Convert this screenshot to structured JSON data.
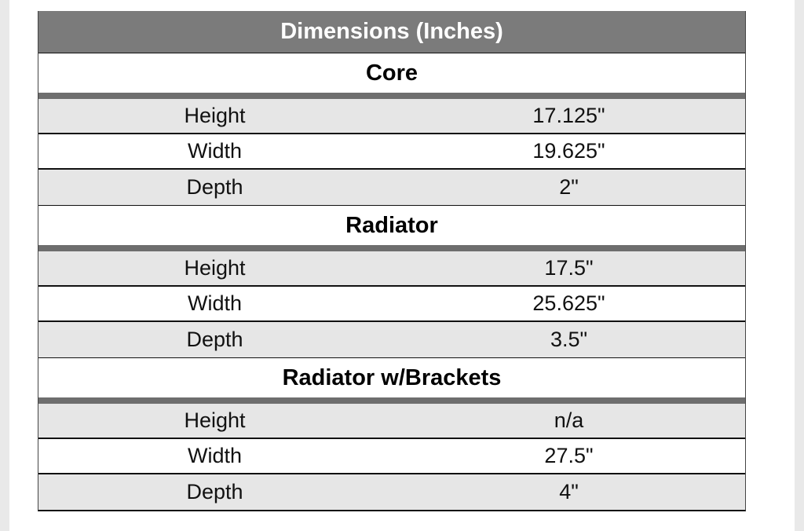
{
  "header": {
    "title": "Dimensions (Inches)"
  },
  "sections": [
    {
      "title": "Core",
      "rows": [
        [
          "Height",
          "17.125\""
        ],
        [
          "Width",
          "19.625\""
        ],
        [
          "Depth",
          "2\""
        ]
      ]
    },
    {
      "title": "Radiator",
      "rows": [
        [
          "Height",
          "17.5\""
        ],
        [
          "Width",
          "25.625\""
        ],
        [
          "Depth",
          "3.5\""
        ]
      ]
    },
    {
      "title": "Radiator w/Brackets",
      "rows": [
        [
          "Height",
          "n/a"
        ],
        [
          "Width",
          "27.5\""
        ],
        [
          "Depth",
          "4\""
        ]
      ]
    }
  ]
}
